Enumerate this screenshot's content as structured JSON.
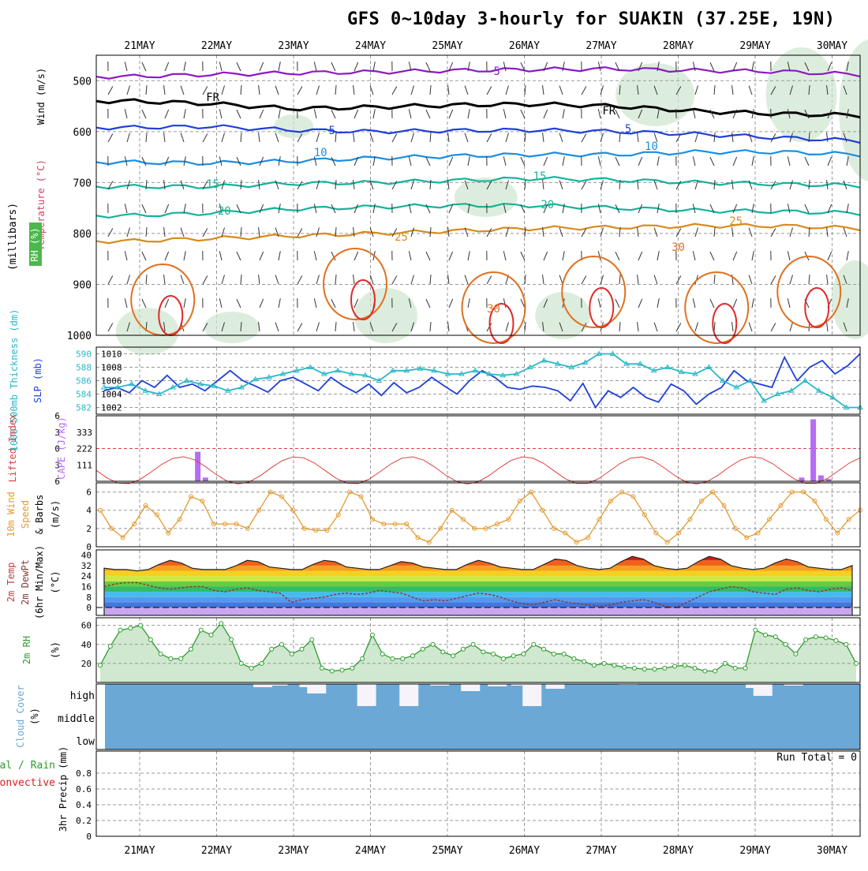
{
  "title": "GFS 0~10day 3-hourly for SUAKIN (37.25E, 19N)",
  "colors": {
    "purple": "#8b19c5",
    "black": "#000000",
    "blue": "#1f3fd8",
    "lightblue": "#1a8ee0",
    "teal": "#14b39a",
    "orange": "#d98a1c",
    "darkorange": "#e07020",
    "red": "#e02a2a",
    "cyan": "#2ab7c8",
    "slp_blue": "#1f3fd8",
    "cape_violet": "#b56cf2",
    "li_red": "#e04040",
    "wind_orange": "#e39a30",
    "rh_green": "#2e9c2e",
    "cloud_blue": "#6ba8d6",
    "cloud_white": "#f6f3fb"
  },
  "chart_data": [
    {
      "panel": "upper-air",
      "type": "line",
      "x": [
        "21MAY",
        "22MAY",
        "23MAY",
        "24MAY",
        "25MAY",
        "26MAY",
        "27MAY",
        "28MAY",
        "29MAY",
        "30MAY"
      ],
      "ylabel": "(millibars)",
      "legend_labels": [
        "Wind (m/s)",
        "Temperature (°C)",
        "RH (%)"
      ],
      "yticks": [
        500,
        600,
        700,
        800,
        900,
        1000
      ],
      "ylim": [
        1000,
        450
      ],
      "series": [
        {
          "name": "-5",
          "color": "purple",
          "values": [
            492,
            488,
            485,
            483,
            480,
            478,
            477,
            480,
            482,
            488
          ]
        },
        {
          "name": "FR",
          "color": "black",
          "values": [
            540,
            545,
            555,
            552,
            548,
            546,
            550,
            560,
            565,
            568
          ]
        },
        {
          "name": "-5 b",
          "color": "blue",
          "values": [
            592,
            590,
            597,
            600,
            598,
            597,
            600,
            605,
            612,
            618
          ]
        },
        {
          "name": "10",
          "color": "lightblue",
          "values": [
            660,
            662,
            658,
            652,
            648,
            645,
            645,
            640,
            640,
            645
          ]
        },
        {
          "name": "15",
          "color": "teal",
          "values": [
            708,
            708,
            702,
            700,
            696,
            692,
            695,
            700,
            703,
            706
          ]
        },
        {
          "name": "20",
          "color": "teal",
          "values": [
            765,
            760,
            752,
            748,
            745,
            745,
            750,
            755,
            757,
            760
          ]
        },
        {
          "name": "25",
          "color": "orange",
          "values": [
            815,
            810,
            805,
            800,
            795,
            790,
            788,
            785,
            785,
            790
          ]
        }
      ],
      "contour_labels": [
        "-5",
        "FR",
        "FR",
        "-5",
        "-5",
        "10",
        "10",
        "15",
        "15",
        "20",
        "20",
        "25",
        "25",
        "30",
        "30",
        "30",
        "10",
        "10",
        "30",
        "30",
        "30"
      ]
    },
    {
      "panel": "slp-thickness",
      "type": "line",
      "ylabel_left": "1000-500mb Thickness (dm)",
      "ylabel_right": "SLP (mb)",
      "yticks_left": [
        582,
        584,
        586,
        588,
        590
      ],
      "yticks_right": [
        1002,
        1004,
        1006,
        1008,
        1010
      ],
      "series": [
        {
          "name": "SLP",
          "color": "slp_blue",
          "values": [
            1004.5,
            1005,
            1004.2,
            1006,
            1005,
            1006.8,
            1005,
            1005.5,
            1004.5,
            1006,
            1007.5,
            1006,
            1005.2,
            1004.3,
            1006,
            1006.5,
            1005.5,
            1004.5,
            1006.5,
            1005.2,
            1004.2,
            1005.5,
            1003.8,
            1005.7,
            1004.2,
            1005,
            1006.5,
            1005.2,
            1004,
            1006,
            1007.5,
            1006.5,
            1005,
            1004.7,
            1005.2,
            1005,
            1004.5,
            1003,
            1005.6,
            1002,
            1004.5,
            1003.5,
            1005,
            1003.5,
            1002.8,
            1005.5,
            1004.5,
            1002.5,
            1004,
            1005,
            1007.5,
            1006,
            1005.5,
            1005,
            1009.5,
            1006,
            1008,
            1009,
            1007,
            1008.2,
            1010
          ]
        },
        {
          "name": "Thickness",
          "color": "cyan",
          "values": [
            585,
            585,
            585.5,
            584.5,
            584,
            585,
            586,
            585.5,
            585.2,
            584.5,
            585,
            586.2,
            586.5,
            587,
            587.5,
            588,
            587,
            587.5,
            587,
            586.8,
            586,
            587.5,
            587.5,
            587.8,
            587.5,
            587,
            587,
            587.5,
            587,
            586.8,
            587,
            588,
            589,
            588.5,
            588,
            588.7,
            590,
            590,
            588.5,
            588.5,
            587.5,
            588,
            587.3,
            587,
            588,
            586,
            585,
            586,
            583,
            584,
            584.5,
            586,
            584.5,
            583.5,
            582,
            582
          ]
        }
      ]
    },
    {
      "panel": "cape-li",
      "type": "bar",
      "ylabel_left": "Lifted Index",
      "ylabel_right": "CAPE (J/kg)",
      "yticks_left": [
        -6,
        -3,
        0,
        3,
        6
      ],
      "yticks_left_labels": [
        "6",
        "3",
        "0",
        "3",
        "6"
      ],
      "yticks_right": [
        111,
        222,
        333
      ],
      "cape_bars": [
        {
          "day": 0.75,
          "value": 200
        },
        {
          "day": 0.85,
          "value": 25
        },
        {
          "day": 8.6,
          "value": 25
        },
        {
          "day": 8.75,
          "value": 420
        },
        {
          "day": 8.85,
          "value": 40
        },
        {
          "day": 8.95,
          "value": 15
        },
        {
          "day": 9.7,
          "value": 50
        }
      ]
    },
    {
      "panel": "wind10m",
      "type": "line",
      "ylabel": "10m Wind Speed & Barbs (m/s)",
      "yticks": [
        0,
        2,
        4,
        6
      ],
      "ylim": [
        0,
        7
      ],
      "series": [
        {
          "name": "10m Wind Speed",
          "color": "wind_orange",
          "values": [
            4,
            2,
            1,
            2.5,
            4.5,
            3.5,
            1.5,
            3,
            5.5,
            5,
            2.5,
            2.5,
            2.5,
            2,
            4,
            6,
            5.5,
            4,
            2,
            1.8,
            1.8,
            3.5,
            6,
            5.5,
            3,
            2.5,
            2.5,
            2.5,
            1,
            0.5,
            2,
            4,
            3,
            2,
            2,
            2.5,
            3,
            5,
            6,
            4,
            2,
            1.5,
            0.5,
            1,
            3,
            5,
            6,
            5.5,
            3.5,
            1.5,
            0.5,
            1.5,
            3,
            5,
            6,
            4.5,
            2,
            1,
            1.5,
            3,
            4.5,
            6,
            6,
            5,
            3,
            1.5,
            3,
            4
          ]
        }
      ]
    },
    {
      "panel": "temp2m",
      "type": "area",
      "ylabel": "2m Temp / 2m DewPt (6hr Min/Max) (°C)",
      "yticks": [
        0,
        8,
        16,
        24,
        32,
        40
      ],
      "ylim": [
        -6,
        44
      ],
      "temp_values": [
        30,
        29,
        29,
        28,
        29,
        33,
        36,
        34,
        30,
        29,
        29,
        29,
        32,
        36,
        35,
        31,
        30,
        29,
        29,
        33,
        36,
        35,
        31,
        30,
        29,
        29,
        32,
        35,
        34,
        31,
        30,
        29,
        29,
        33,
        36,
        34,
        31,
        30,
        29,
        29,
        33,
        37,
        36,
        32,
        30,
        29,
        30,
        35,
        39,
        37,
        32,
        30,
        29,
        30,
        35,
        39,
        37,
        32,
        30,
        29,
        30,
        34,
        37,
        35,
        31,
        30,
        29,
        29,
        32
      ],
      "dewpt_values": [
        16,
        18,
        19,
        19,
        17,
        15,
        14,
        15,
        16,
        16,
        13,
        12,
        14,
        15,
        13,
        12,
        11,
        4,
        6,
        7,
        8,
        10,
        11,
        10,
        11,
        13,
        12,
        11,
        8,
        5,
        6,
        5,
        7,
        9,
        11,
        10,
        8,
        5,
        3,
        2,
        4,
        6,
        4,
        3,
        2,
        1,
        2,
        4,
        5,
        6,
        4,
        1,
        0,
        4,
        8,
        12,
        14,
        16,
        15,
        12,
        11,
        10,
        14,
        15,
        13,
        12,
        14,
        15,
        13
      ]
    },
    {
      "panel": "rh2m",
      "type": "area",
      "ylabel": "2m RH (%)",
      "yticks": [
        20,
        40,
        60
      ],
      "ylim": [
        0,
        68
      ],
      "series": [
        {
          "name": "2m RH",
          "color": "rh_green",
          "values": [
            18,
            38,
            55,
            57,
            60,
            45,
            30,
            25,
            25,
            35,
            55,
            50,
            62,
            45,
            20,
            15,
            20,
            35,
            40,
            30,
            35,
            45,
            15,
            12,
            13,
            15,
            25,
            50,
            30,
            25,
            25,
            28,
            35,
            40,
            32,
            28,
            35,
            40,
            32,
            30,
            25,
            28,
            30,
            40,
            35,
            30,
            30,
            25,
            22,
            18,
            20,
            18,
            16,
            15,
            14,
            14,
            15,
            17,
            18,
            15,
            12,
            12,
            20,
            15,
            15,
            55,
            50,
            48,
            40,
            30,
            45,
            48,
            47,
            44,
            40,
            20
          ]
        }
      ]
    },
    {
      "panel": "cloud",
      "type": "bar",
      "ylabel": "Cloud Cover (%)",
      "yticks": [
        "high",
        "middle",
        "low"
      ],
      "high_cloud_bars": [
        {
          "day": 1.6,
          "h": 4
        },
        {
          "day": 1.8,
          "h": 2
        },
        {
          "day": 2.2,
          "h": 4
        },
        {
          "day": 2.3,
          "h": 12
        },
        {
          "day": 2.95,
          "h": 28
        },
        {
          "day": 3.5,
          "h": 28
        },
        {
          "day": 3.9,
          "h": 2
        },
        {
          "day": 4.3,
          "h": 9
        },
        {
          "day": 4.65,
          "h": 3
        },
        {
          "day": 4.95,
          "h": 2
        },
        {
          "day": 5.1,
          "h": 28
        },
        {
          "day": 5.4,
          "h": 6
        },
        {
          "day": 6.35,
          "h": 1
        },
        {
          "day": 8.0,
          "h": 5
        },
        {
          "day": 8.1,
          "h": 15
        },
        {
          "day": 8.5,
          "h": 2
        }
      ]
    },
    {
      "panel": "precip",
      "type": "bar",
      "ylabel": "3hr Precip (mm)",
      "yticks": [
        0,
        0.2,
        0.4,
        0.6,
        0.8
      ],
      "ylim": [
        0,
        1
      ],
      "values": []
    }
  ],
  "labels": {
    "wind": "Wind (m/s)",
    "temperature": "Temperature (°C)",
    "rh": "RH (%)",
    "millibars": "(millibars)",
    "thickness": "1000-500mb Thickness (dm)",
    "slp": "SLP (mb)",
    "lifted_index": "Lifted Index",
    "cape": "CAPE (J/kg)",
    "wind10m": "10m Wind",
    "speed": "Speed",
    "barbs": "& Barbs",
    "ms": "(m/s)",
    "temp2m": "2m Temp",
    "dewpt2m": "2m DewPt",
    "minmax": "(6hr Min/Max)",
    "degc": "(°C)",
    "rh2m": "2m RH",
    "pct": "(%)",
    "cloud": "Cloud Cover",
    "cloud_pct": "(%)",
    "precip": "3hr Precip (mm)",
    "precip_total": "tal / Rain",
    "convective": "Convective",
    "run_total": "Run Total = 0"
  }
}
